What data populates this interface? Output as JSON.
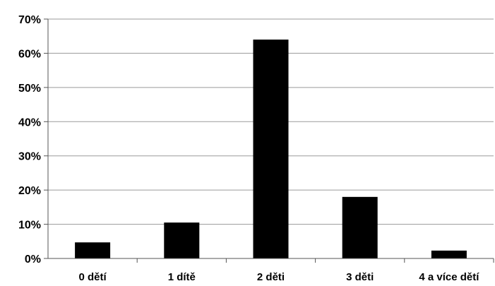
{
  "chart_data": {
    "type": "bar",
    "title": "",
    "xlabel": "",
    "ylabel": "",
    "categories": [
      "0 dětí",
      "1 dítě",
      "2 děti",
      "3 děti",
      "4 a více dětí"
    ],
    "values": [
      4.7,
      10.5,
      64,
      18,
      2.3
    ],
    "y_unit": "%",
    "ylim": [
      0,
      70
    ],
    "yticks": [
      "0%",
      "10%",
      "20%",
      "30%",
      "40%",
      "50%",
      "60%",
      "70%"
    ],
    "grid": true,
    "legend": "none",
    "colors": {
      "bar": "#000000",
      "grid": "#9a9a9a",
      "axis": "#555555"
    }
  }
}
